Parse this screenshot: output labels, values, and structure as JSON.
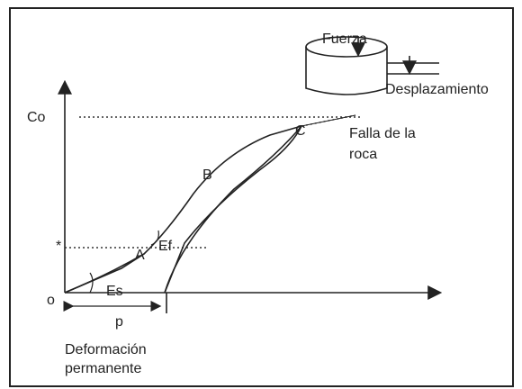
{
  "force_label": "Fuerza",
  "displacement_label": "Desplazamiento",
  "y_axis_label": "Co",
  "star_label": "*",
  "points": {
    "a": "A",
    "b": "B",
    "c": "C"
  },
  "ef_label": "Ef",
  "es_label": "Es",
  "origin_label": "o",
  "p_label": "p",
  "failure_label": [
    "Falla de la",
    "roca"
  ],
  "x_caption": [
    "Deformación",
    "permanente"
  ]
}
